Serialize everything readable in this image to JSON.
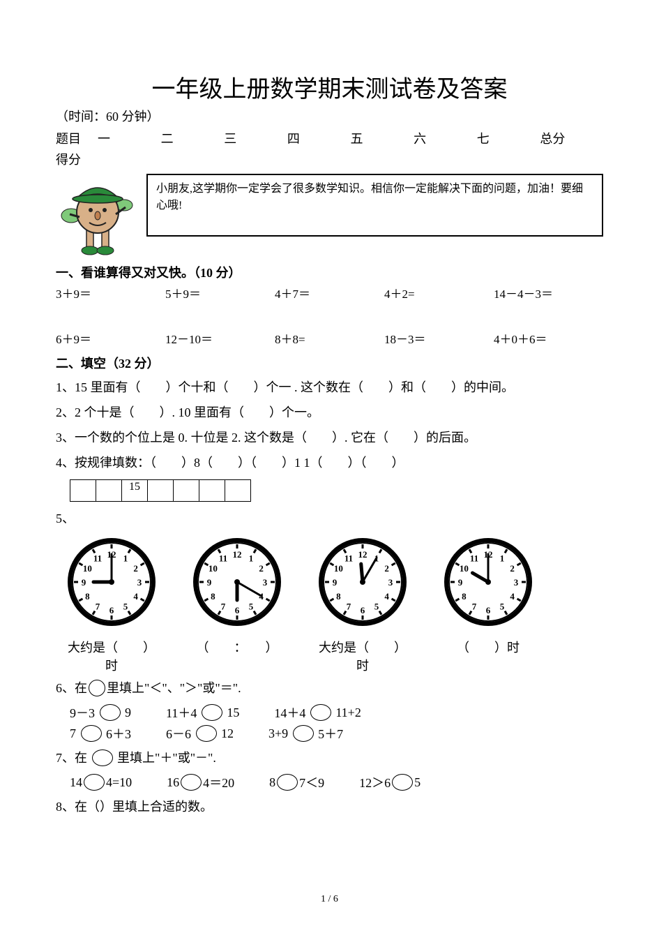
{
  "title": "一年级上册数学期末测试卷及答案",
  "time_note": "（时间：60 分钟）",
  "score_header": {
    "label": "题目",
    "cols": [
      "一",
      "二",
      "三",
      "四",
      "五",
      "六",
      "七",
      "总分"
    ],
    "score_label": "得分"
  },
  "intro_text": "小朋友,这学期你一定学会了很多数学知识。相信你一定能解决下面的问题，加油！要细心哦!",
  "section1": {
    "heading": "一、看谁算得又对又快。（10 分）",
    "row1": [
      "3＋9＝",
      "5＋9＝",
      "4＋7＝",
      "4＋2=",
      "14－4－3＝"
    ],
    "row2": [
      "6＋9＝",
      "12－10＝",
      "8＋8=",
      "18－3＝",
      "4＋0＋6＝"
    ]
  },
  "section2": {
    "heading": "二、填空（32 分）",
    "q1": "1、15 里面有（　　）个十和（　　）个一 . 这个数在（　　）和（　　）的中间。",
    "q2": "2、2 个十是（　　）. 10 里面有（　　）个一。",
    "q3": "3、一个数的个位上是 0. 十位是 2. 这个数是（　　）. 它在（　　）的后面。",
    "q4": "4、按规律填数：（　　）8（　　）（　　）1 1（　　）（　　）",
    "seq_cells": [
      "",
      "",
      "15",
      "",
      "",
      "",
      ""
    ],
    "q5_label": "5、",
    "clocks": [
      {
        "hour_angle": -90,
        "min_angle": 0,
        "caption": "大约是（　　）时"
      },
      {
        "hour_angle": 180,
        "min_angle": 120,
        "caption": "（　　：　　）"
      },
      {
        "hour_angle": -5,
        "min_angle": 30,
        "caption": "大约是（　　）时"
      },
      {
        "hour_angle": -60,
        "min_angle": 0,
        "caption": "（　　）时"
      }
    ],
    "q6": "6、在○ 里填上\"＜\"、\"＞\"或\"＝\".",
    "cmp_rows": [
      [
        {
          "l": "9－3",
          "r": "9"
        },
        {
          "l": "11＋4",
          "r": "15"
        },
        {
          "l": "14＋4",
          "r": "11+2"
        }
      ],
      [
        {
          "l": "7",
          "r": "6＋3"
        },
        {
          "l": "6－6",
          "r": "12"
        },
        {
          "l": "3+9",
          "r": "5＋7"
        }
      ]
    ],
    "q7": "7、在 ○ 里填上\"＋\"或\"－\".",
    "op_row": [
      {
        "pre": "14",
        "mid": "4=10"
      },
      {
        "pre": "16",
        "mid": "4＝20"
      },
      {
        "pre": "8",
        "mid": "7＜9"
      },
      {
        "pre": "12＞6",
        "mid": "5"
      }
    ],
    "q8": "8、在（）里填上合适的数。"
  },
  "footer": "1 / 6",
  "colors": {
    "text": "#000000",
    "bg": "#ffffff",
    "mascot_hat": "#2a8a3a",
    "mascot_skin": "#d8b088",
    "mascot_outline": "#222222",
    "clock_fill": "#e8e8e8"
  }
}
